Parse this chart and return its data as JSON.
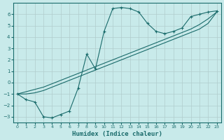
{
  "xlabel": "Humidex (Indice chaleur)",
  "ylabel": "",
  "bg_color": "#c8eaea",
  "grid_color": "#b0cccc",
  "line_color": "#1a6b6b",
  "xlim": [
    -0.5,
    23.5
  ],
  "ylim": [
    -3.5,
    7.0
  ],
  "xticks": [
    0,
    1,
    2,
    3,
    4,
    5,
    6,
    7,
    8,
    9,
    10,
    11,
    12,
    13,
    14,
    15,
    16,
    17,
    18,
    19,
    20,
    21,
    22,
    23
  ],
  "yticks": [
    -3,
    -2,
    -1,
    0,
    1,
    2,
    3,
    4,
    5,
    6
  ],
  "series": [
    {
      "x": [
        0,
        1,
        2,
        3,
        4,
        5,
        6,
        7,
        8,
        9,
        10,
        11,
        12,
        13,
        14,
        15,
        16,
        17,
        18,
        19,
        20,
        21,
        22,
        23
      ],
      "y": [
        -1.0,
        -1.5,
        -1.7,
        -3.0,
        -3.1,
        -2.8,
        -2.5,
        -0.5,
        2.5,
        1.2,
        4.5,
        6.5,
        6.6,
        6.5,
        6.2,
        5.2,
        4.5,
        4.3,
        4.5,
        4.8,
        5.8,
        6.0,
        6.2,
        6.3
      ],
      "marker": true
    },
    {
      "x": [
        0,
        1,
        2,
        3,
        4,
        5,
        6,
        7,
        8,
        9,
        10,
        11,
        12,
        13,
        14,
        15,
        16,
        17,
        18,
        19,
        20,
        21,
        22,
        23
      ],
      "y": [
        -1.0,
        -0.8,
        -0.6,
        -0.4,
        -0.1,
        0.2,
        0.5,
        0.8,
        1.1,
        1.4,
        1.7,
        2.0,
        2.3,
        2.6,
        2.9,
        3.2,
        3.5,
        3.8,
        4.1,
        4.4,
        4.7,
        5.1,
        5.6,
        6.2
      ],
      "marker": false
    },
    {
      "x": [
        0,
        1,
        2,
        3,
        4,
        5,
        6,
        7,
        8,
        9,
        10,
        11,
        12,
        13,
        14,
        15,
        16,
        17,
        18,
        19,
        20,
        21,
        22,
        23
      ],
      "y": [
        -1.0,
        -1.0,
        -0.9,
        -0.7,
        -0.4,
        -0.1,
        0.2,
        0.5,
        0.8,
        1.1,
        1.4,
        1.7,
        2.0,
        2.3,
        2.6,
        2.9,
        3.2,
        3.5,
        3.8,
        4.1,
        4.4,
        4.7,
        5.2,
        6.2
      ],
      "marker": false
    }
  ]
}
